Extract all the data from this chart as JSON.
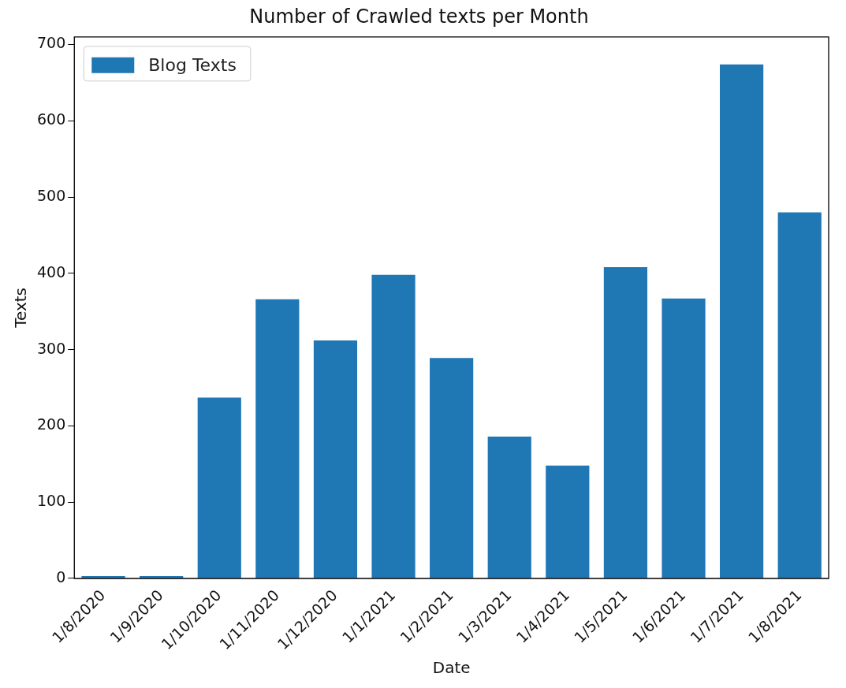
{
  "chart_data": {
    "type": "bar",
    "title": "Number of Crawled texts per Month",
    "xlabel": "Date",
    "ylabel": "Texts",
    "categories": [
      "1/8/2020",
      "1/9/2020",
      "1/10/2020",
      "1/11/2020",
      "1/12/2020",
      "1/1/2021",
      "1/2/2021",
      "1/3/2021",
      "1/4/2021",
      "1/5/2021",
      "1/6/2021",
      "1/7/2021",
      "1/8/2021"
    ],
    "series": [
      {
        "name": "Blog Texts",
        "color": "#1f77b4",
        "values": [
          3,
          3,
          237,
          366,
          312,
          398,
          289,
          186,
          148,
          408,
          367,
          674,
          480
        ]
      }
    ],
    "ylim": [
      0,
      710
    ],
    "yticks": [
      0,
      100,
      200,
      300,
      400,
      500,
      600,
      700
    ],
    "grid": false,
    "legend": "top left"
  }
}
